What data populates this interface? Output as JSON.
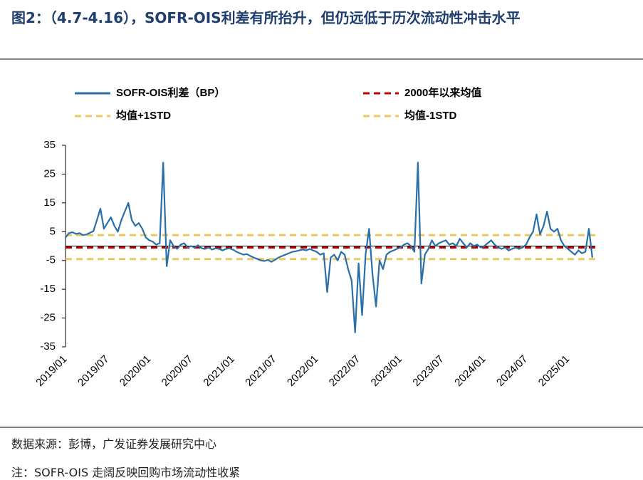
{
  "title": "图2：（4.7-4.16），SOFR-OIS利差有所抬升，但仍远低于历次流动性冲击水平",
  "chart_data": {
    "type": "line",
    "categories": [
      "2019/01",
      null,
      null,
      null,
      null,
      null,
      null,
      null,
      null,
      null,
      null,
      null,
      "2019/07",
      null,
      null,
      null,
      null,
      null,
      null,
      null,
      null,
      null,
      null,
      null,
      "2020/01",
      null,
      null,
      null,
      null,
      null,
      null,
      null,
      null,
      null,
      null,
      null,
      "2020/07",
      null,
      null,
      null,
      null,
      null,
      null,
      null,
      null,
      null,
      null,
      null,
      "2021/01",
      null,
      null,
      null,
      null,
      null,
      null,
      null,
      null,
      null,
      null,
      null,
      "2021/07",
      null,
      null,
      null,
      null,
      null,
      null,
      null,
      null,
      null,
      null,
      null,
      "2022/01",
      null,
      null,
      null,
      null,
      null,
      null,
      null,
      null,
      null,
      null,
      null,
      "2022/07",
      null,
      null,
      null,
      null,
      null,
      null,
      null,
      null,
      null,
      null,
      null,
      "2023/01",
      null,
      null,
      null,
      null,
      null,
      null,
      null,
      null,
      null,
      null,
      null,
      "2023/07",
      null,
      null,
      null,
      null,
      null,
      null,
      null,
      null,
      null,
      null,
      null,
      "2024/01",
      null,
      null,
      null,
      null,
      null,
      null,
      null,
      null,
      null,
      null,
      null,
      "2024/07",
      null,
      null,
      null,
      null,
      null,
      null,
      null,
      null,
      null,
      null,
      null,
      "2025/01",
      null,
      null,
      null,
      null,
      null,
      null,
      null
    ],
    "series": [
      {
        "name": "SOFR-OIS利差（BP）",
        "color": "#2a6fa8",
        "values": [
          3,
          4.5,
          4.8,
          4.2,
          4.5,
          3.8,
          4,
          4.6,
          5.2,
          9,
          13,
          6,
          8,
          10,
          7,
          5,
          9,
          12,
          15,
          9,
          7,
          8,
          6,
          3,
          2,
          1.5,
          0.5,
          1,
          29,
          -7,
          2,
          0,
          -1,
          0.5,
          1,
          -0.5,
          0,
          -0.5,
          0.3,
          -0.8,
          -1,
          -0.5,
          -1.2,
          -0.8,
          -1,
          -1.5,
          -1,
          -0.8,
          -1.2,
          -2,
          -2.5,
          -3,
          -2.8,
          -3.5,
          -4,
          -4.5,
          -5,
          -5.2,
          -4.8,
          -5.5,
          -4.8,
          -4,
          -3.5,
          -3,
          -2.5,
          -2,
          -1.8,
          -1.5,
          -1.2,
          -1.5,
          -1,
          -1.5,
          -2,
          -3,
          -2.5,
          -16,
          -4,
          -3,
          -5,
          -2,
          -3,
          -8,
          -12,
          -30,
          -6,
          -24,
          -3,
          6,
          -10,
          -21,
          -5,
          -8,
          -3,
          -2,
          -1.5,
          -1,
          -0.5,
          0.5,
          1,
          0,
          -2,
          29,
          -13,
          -3,
          -1,
          2,
          0,
          1,
          1.5,
          2,
          0.5,
          1,
          0,
          2.5,
          1,
          -0.5,
          1,
          0,
          0.5,
          -0.5,
          0,
          1,
          2,
          0.5,
          -0.5,
          -1,
          -0.5,
          -1.5,
          -1,
          -0.5,
          -1,
          -0.5,
          0.5,
          3,
          5,
          11,
          4,
          7,
          12,
          6,
          5,
          6,
          2,
          0,
          -1,
          -2,
          -3,
          -1.5,
          -2.5,
          -2,
          6,
          -4
        ]
      }
    ],
    "reference_lines": [
      {
        "name": "2000年以来均值",
        "value": -0.5,
        "color": "#c00000"
      },
      {
        "name": "均值+1STD",
        "value": 3.8,
        "color": "#e8c860"
      },
      {
        "name": "均值-1STD",
        "value": -4.5,
        "color": "#e8c860"
      }
    ],
    "ylim": [
      -35,
      35
    ],
    "yticks": [
      -35,
      -25,
      -15,
      -5,
      5,
      15,
      25,
      35
    ]
  },
  "source": "数据来源：彭博，广发证券发展研究中心",
  "note": "注：SOFR-OIS 走阔反映回购市场流动性收紧"
}
